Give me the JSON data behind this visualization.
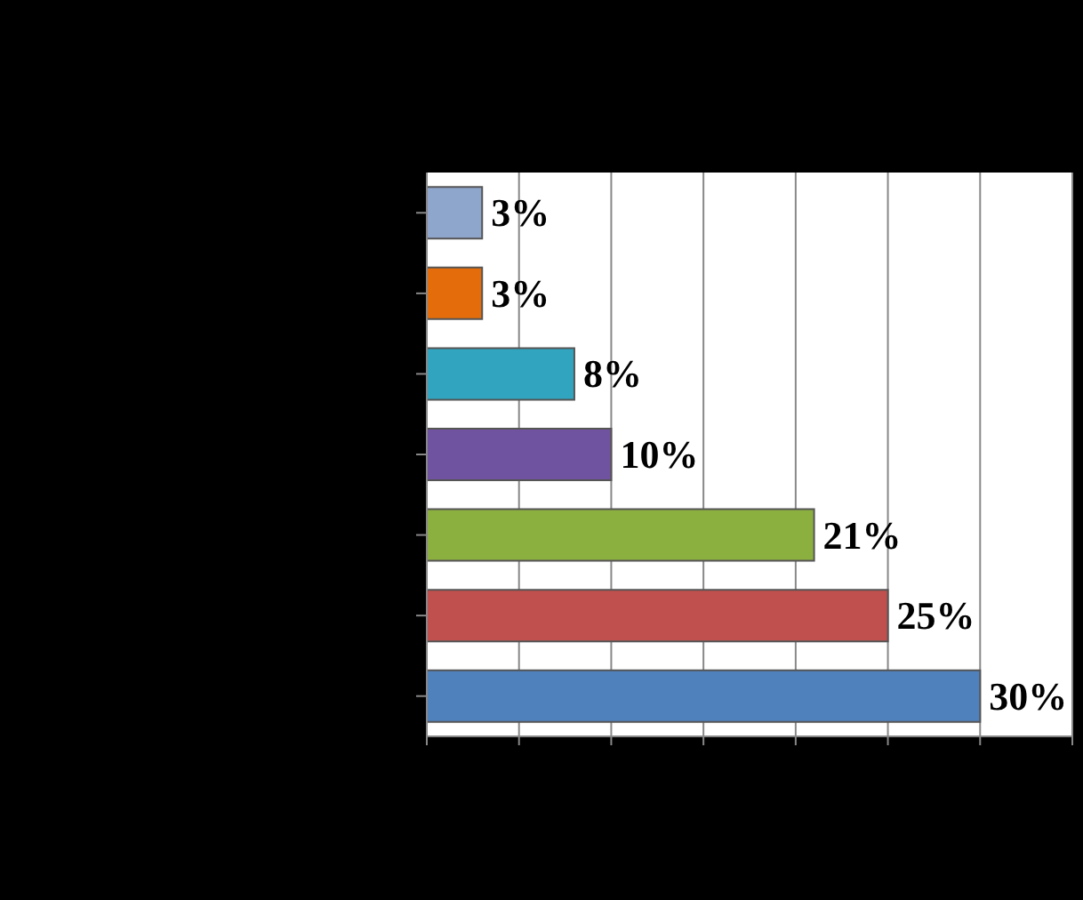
{
  "chart_data": {
    "type": "bar",
    "orientation": "horizontal",
    "categories": [
      null,
      null,
      null,
      null,
      null,
      null,
      null
    ],
    "values": [
      3,
      3,
      8,
      10,
      21,
      25,
      30
    ],
    "colors": [
      "#8ea5cc",
      "#e46c0a",
      "#31a5c0",
      "#7053a0",
      "#8cb040",
      "#c0504d",
      "#4f81bd"
    ],
    "value_labels": [
      "3%",
      "3%",
      "8%",
      "10%",
      "21%",
      "25%",
      "30%"
    ],
    "grid": "x",
    "tick_labels": false
  }
}
